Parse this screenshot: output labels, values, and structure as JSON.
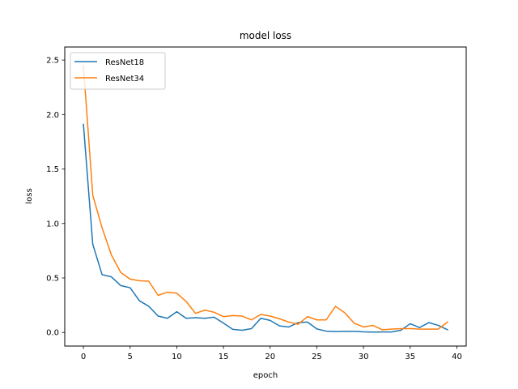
{
  "chart_data": {
    "type": "line",
    "title": "model loss",
    "xlabel": "epoch",
    "ylabel": "loss",
    "xlim": [
      -2,
      41
    ],
    "ylim": [
      -0.125,
      2.62
    ],
    "xticks": [
      0,
      5,
      10,
      15,
      20,
      25,
      30,
      35,
      40
    ],
    "yticks": [
      0.0,
      0.5,
      1.0,
      1.5,
      2.0,
      2.5
    ],
    "ytick_labels": [
      "0.0",
      "0.5",
      "1.0",
      "1.5",
      "2.0",
      "2.5"
    ],
    "grid": false,
    "legend_position": "top-left",
    "x": [
      0,
      1,
      2,
      3,
      4,
      5,
      6,
      7,
      8,
      9,
      10,
      11,
      12,
      13,
      14,
      15,
      16,
      17,
      18,
      19,
      20,
      21,
      22,
      23,
      24,
      25,
      26,
      27,
      28,
      29,
      30,
      31,
      32,
      33,
      34,
      35,
      36,
      37,
      38,
      39
    ],
    "series": [
      {
        "name": "ResNet18",
        "color": "#1f77b4",
        "values": [
          1.91,
          0.81,
          0.53,
          0.51,
          0.43,
          0.41,
          0.29,
          0.24,
          0.15,
          0.13,
          0.19,
          0.13,
          0.135,
          0.13,
          0.14,
          0.085,
          0.028,
          0.02,
          0.035,
          0.13,
          0.11,
          0.06,
          0.05,
          0.09,
          0.095,
          0.032,
          0.012,
          0.008,
          0.01,
          0.01,
          0.005,
          0.003,
          0.004,
          0.004,
          0.02,
          0.08,
          0.045,
          0.09,
          0.065,
          0.025
        ]
      },
      {
        "name": "ResNet34",
        "color": "#ff7f0e",
        "values": [
          2.45,
          1.26,
          0.96,
          0.71,
          0.55,
          0.49,
          0.475,
          0.47,
          0.34,
          0.37,
          0.36,
          0.285,
          0.175,
          0.205,
          0.185,
          0.145,
          0.155,
          0.15,
          0.115,
          0.165,
          0.15,
          0.125,
          0.095,
          0.075,
          0.145,
          0.115,
          0.115,
          0.24,
          0.18,
          0.085,
          0.05,
          0.065,
          0.025,
          0.03,
          0.035,
          0.035,
          0.03,
          0.03,
          0.03,
          0.095
        ]
      }
    ]
  }
}
